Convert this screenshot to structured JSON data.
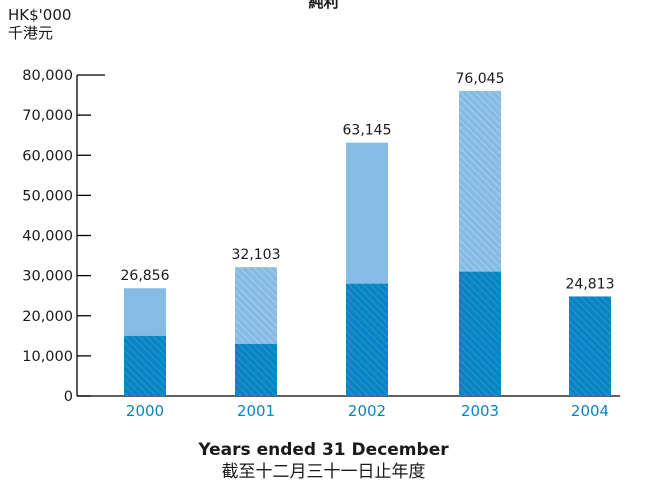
{
  "chart_data": {
    "type": "bar",
    "title": "純利",
    "y_unit": "HK$'000",
    "y_unit_zh": "千港元",
    "xlabel": "Years ended 31 December",
    "xlabel_zh": "截至十二月三十一日止年度",
    "ylim": [
      0,
      80000
    ],
    "ytick_labels": [
      "0",
      "10,000",
      "20,000",
      "30,000",
      "40,000",
      "50,000",
      "60,000",
      "70,000",
      "80,000"
    ],
    "categories": [
      "2000",
      "2001",
      "2002",
      "2003",
      "2004"
    ],
    "series": [
      {
        "values": [
          15000,
          13000,
          28000,
          31000,
          24813
        ]
      },
      {
        "values": [
          11856,
          19103,
          35145,
          45045,
          0
        ]
      }
    ],
    "totals": [
      26856,
      32103,
      63145,
      76045,
      24813
    ],
    "total_labels": [
      "26,856",
      "32,103",
      "63,145",
      "76,045",
      "24,813"
    ],
    "colors": {
      "base": "#0a84c4",
      "upper": "#86bce3",
      "axis": "#000000",
      "category_label": "#0a84c4"
    }
  }
}
